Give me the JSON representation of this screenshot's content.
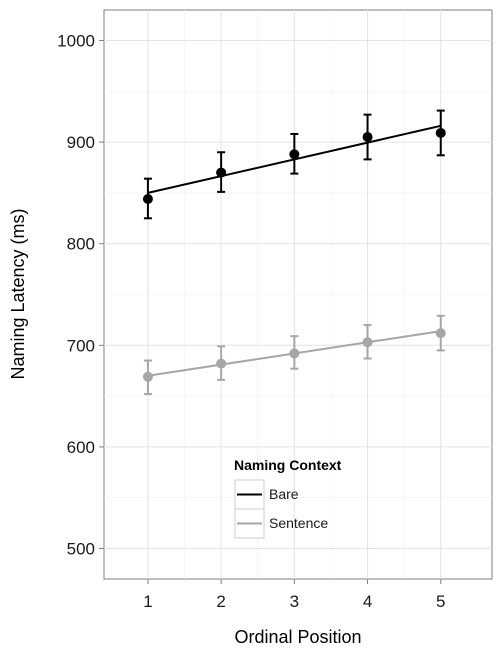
{
  "chart_data": {
    "type": "line",
    "xlabel": "Ordinal Position",
    "ylabel": "Naming Latency (ms)",
    "x": [
      1,
      2,
      3,
      4,
      5
    ],
    "x_tick_labels": [
      "1",
      "2",
      "3",
      "4",
      "5"
    ],
    "xlim": [
      0.4,
      5.7
    ],
    "ylim": [
      470,
      1030
    ],
    "y_ticks": [
      500,
      600,
      700,
      800,
      900,
      1000
    ],
    "y_tick_labels": [
      "500",
      "600",
      "700",
      "800",
      "900",
      "1000"
    ],
    "grid": true,
    "legend": {
      "title": "Naming Context",
      "placement": "bottom-center",
      "entries": [
        "Bare",
        "Sentence"
      ]
    },
    "series": [
      {
        "name": "Bare",
        "color": "#000000",
        "means": [
          844,
          870,
          888,
          905,
          909
        ],
        "ci_lower": [
          825,
          851,
          869,
          883,
          887
        ],
        "ci_upper": [
          864,
          890,
          908,
          927,
          931
        ],
        "fit_line": [
          850,
          916
        ]
      },
      {
        "name": "Sentence",
        "color": "#a6a6a6",
        "means": [
          669,
          682,
          692,
          703,
          712
        ],
        "ci_lower": [
          652,
          666,
          677,
          687,
          695
        ],
        "ci_upper": [
          685,
          699,
          709,
          720,
          729
        ],
        "fit_line": [
          670,
          714
        ]
      }
    ]
  }
}
